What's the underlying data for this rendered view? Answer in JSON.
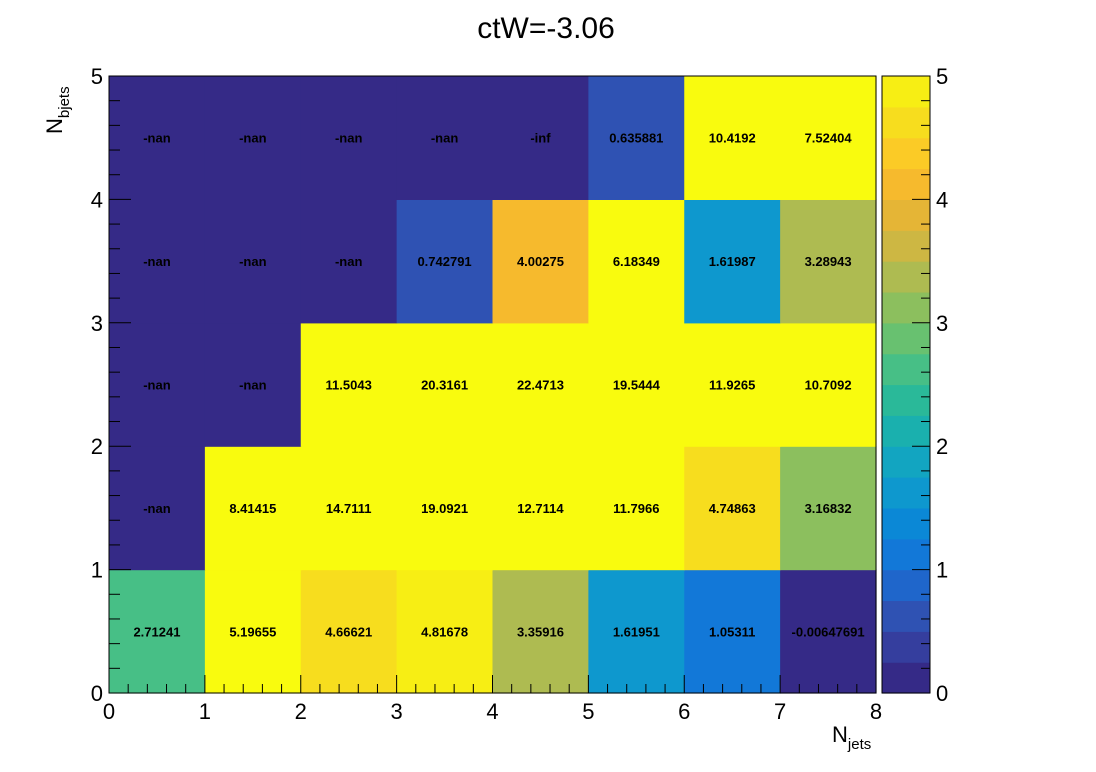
{
  "chart_data": {
    "type": "heatmap",
    "title": "ctW=-3.06",
    "xlabel": "N",
    "xlabel_sub": "jets",
    "ylabel": "N",
    "ylabel_sub": "bjets",
    "xlim": [
      0,
      8
    ],
    "ylim": [
      0,
      5
    ],
    "x_ticks": [
      "0",
      "1",
      "2",
      "3",
      "4",
      "5",
      "6",
      "7",
      "8"
    ],
    "y_ticks": [
      "0",
      "1",
      "2",
      "3",
      "4",
      "5"
    ],
    "zlim": [
      0,
      5
    ],
    "z_ticks": [
      "0",
      "1",
      "2",
      "3",
      "4",
      "5"
    ],
    "colormap": "parula",
    "rows": [
      {
        "y": 0,
        "labels": [
          "2.71241",
          "5.19655",
          "4.66621",
          "4.81678",
          "3.35916",
          "1.61951",
          "1.05311",
          "-0.00647691"
        ],
        "values": [
          2.71241,
          5.19655,
          4.66621,
          4.81678,
          3.35916,
          1.61951,
          1.05311,
          -0.00647691
        ]
      },
      {
        "y": 1,
        "labels": [
          "-nan",
          "8.41415",
          "14.7111",
          "19.0921",
          "12.7114",
          "11.7966",
          "4.74863",
          "3.16832"
        ],
        "values": [
          null,
          8.41415,
          14.7111,
          19.0921,
          12.7114,
          11.7966,
          4.74863,
          3.16832
        ]
      },
      {
        "y": 2,
        "labels": [
          "-nan",
          "-nan",
          "11.5043",
          "20.3161",
          "22.4713",
          "19.5444",
          "11.9265",
          "10.7092"
        ],
        "values": [
          null,
          null,
          11.5043,
          20.3161,
          22.4713,
          19.5444,
          11.9265,
          10.7092
        ]
      },
      {
        "y": 3,
        "labels": [
          "-nan",
          "-nan",
          "-nan",
          "0.742791",
          "4.00275",
          "6.18349",
          "1.61987",
          "3.28943"
        ],
        "values": [
          null,
          null,
          null,
          0.742791,
          4.00275,
          6.18349,
          1.61987,
          3.28943
        ]
      },
      {
        "y": 4,
        "labels": [
          "-nan",
          "-nan",
          "-nan",
          "-nan",
          "-inf",
          "0.635881",
          "10.4192",
          "7.52404"
        ],
        "values": [
          null,
          null,
          null,
          null,
          null,
          0.635881,
          10.4192,
          7.52404
        ]
      }
    ],
    "palette": [
      "#352a87",
      "#353e9e",
      "#2f52b3",
      "#1f66cb",
      "#1278d8",
      "#0b88d6",
      "#0e98ce",
      "#12a5c1",
      "#1ab0ae",
      "#2ab999",
      "#47bf86",
      "#68c170",
      "#8cbf5e",
      "#aebb51",
      "#cdb743",
      "#e5b536",
      "#f6ba2d",
      "#fbcb26",
      "#f7dd1e",
      "#f7ee14"
    ],
    "overflow_color": "#f9fb0e",
    "empty_color": "#352a87"
  }
}
